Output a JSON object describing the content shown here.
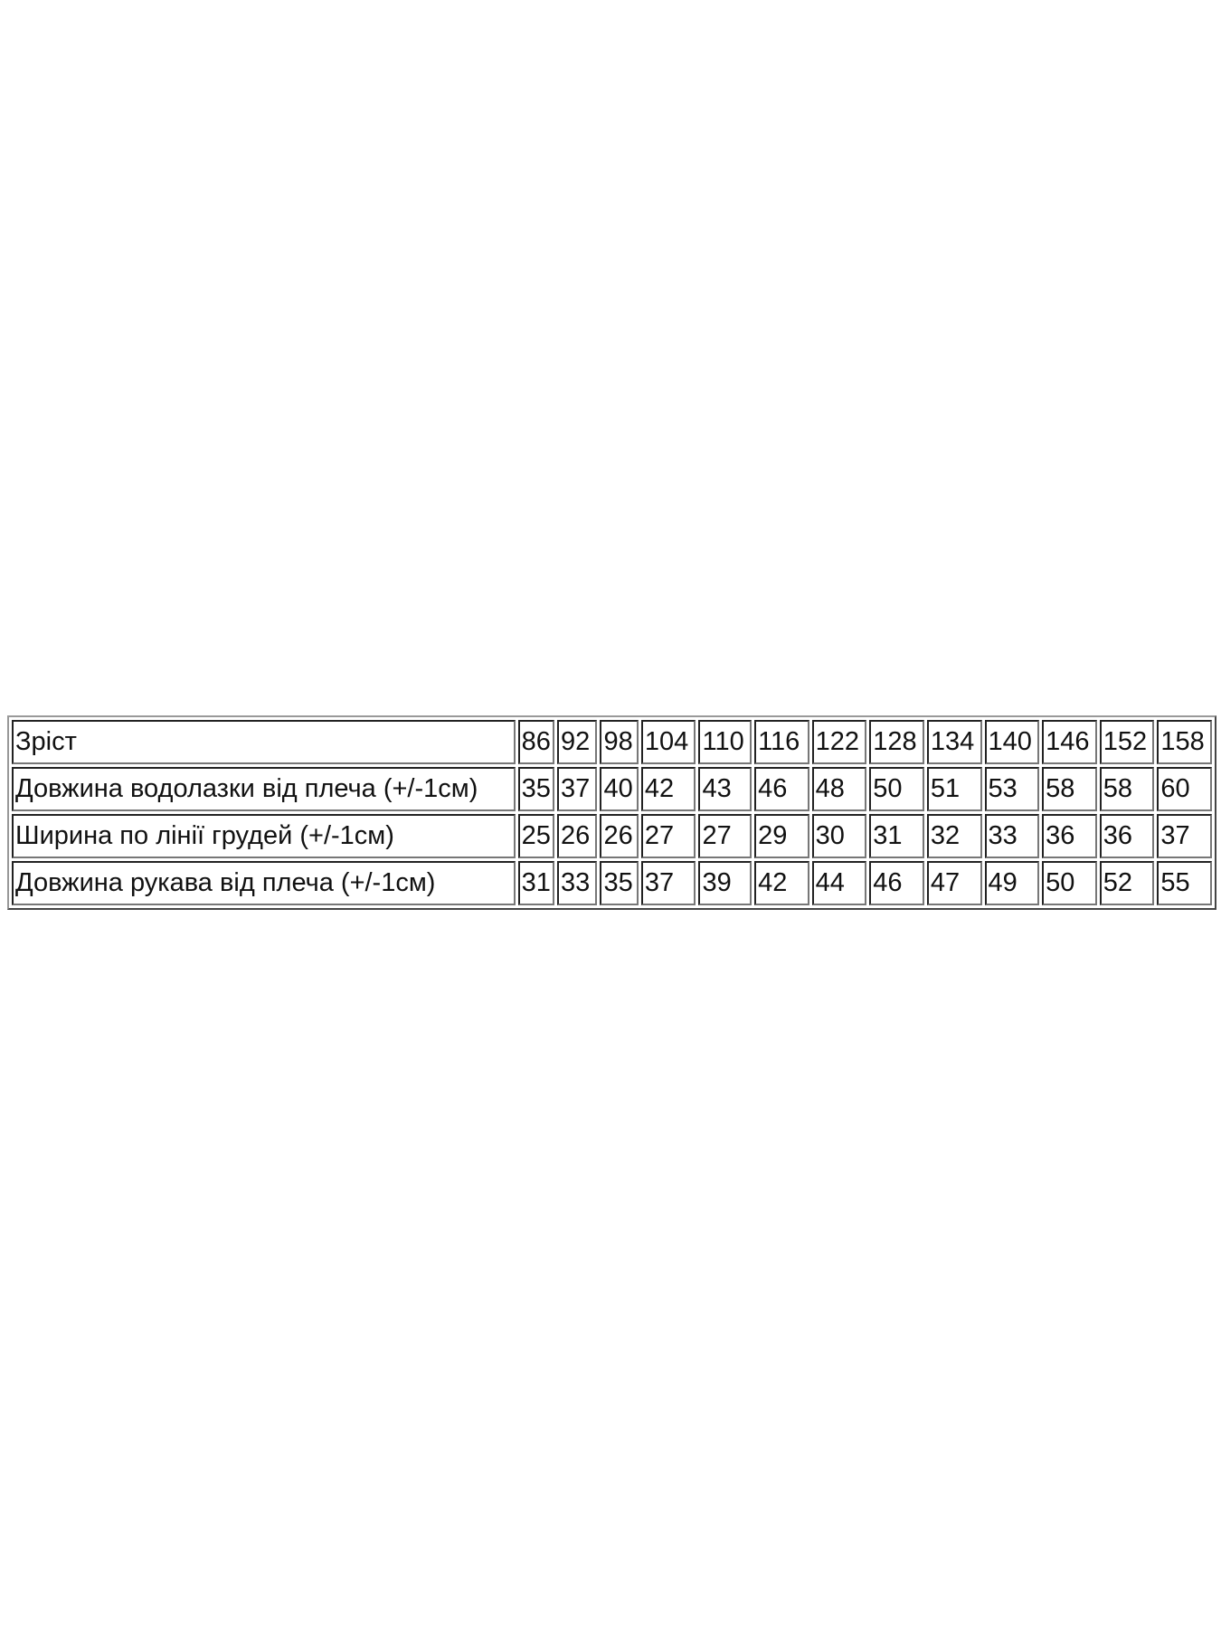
{
  "table": {
    "rows": [
      {
        "label": "Зріст",
        "values": [
          "86",
          "92",
          "98",
          "104",
          "110",
          "116",
          "122",
          "128",
          "134",
          "140",
          "146",
          "152",
          "158"
        ]
      },
      {
        "label": "Довжина водолазки від плеча (+/-1см)",
        "values": [
          "35",
          "37",
          "40",
          "42",
          "43",
          "46",
          "48",
          "50",
          "51",
          "53",
          "58",
          "58",
          "60"
        ]
      },
      {
        "label": "Ширина по лінії грудей (+/-1см)",
        "values": [
          "25",
          "26",
          "26",
          "27",
          "27",
          "29",
          "30",
          "31",
          "32",
          "33",
          "36",
          "36",
          "37"
        ]
      },
      {
        "label": "Довжина рукава від плеча (+/-1см)",
        "values": [
          "31",
          "33",
          "35",
          "37",
          "39",
          "42",
          "44",
          "46",
          "47",
          "49",
          "50",
          "52",
          "55"
        ]
      }
    ]
  }
}
